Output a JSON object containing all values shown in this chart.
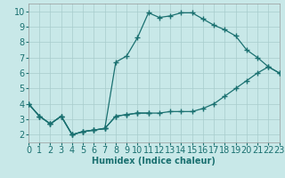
{
  "xlabel": "Humidex (Indice chaleur)",
  "bg_color": "#c8e8e8",
  "line_color": "#1a7070",
  "grid_color": "#a8cccc",
  "xlim": [
    0,
    23
  ],
  "ylim": [
    1.5,
    10.5
  ],
  "xticks": [
    0,
    1,
    2,
    3,
    4,
    5,
    6,
    7,
    8,
    9,
    10,
    11,
    12,
    13,
    14,
    15,
    16,
    17,
    18,
    19,
    20,
    21,
    22,
    23
  ],
  "yticks": [
    2,
    3,
    4,
    5,
    6,
    7,
    8,
    9,
    10
  ],
  "line1_x": [
    0,
    1,
    2,
    3,
    4,
    5,
    6,
    7,
    8,
    9,
    10,
    11
  ],
  "line1_y": [
    4.0,
    3.2,
    2.7,
    3.2,
    2.0,
    2.2,
    2.3,
    2.4,
    3.2,
    3.3,
    3.4,
    3.4
  ],
  "line2_x": [
    0,
    1,
    2,
    3,
    4,
    5,
    6,
    7,
    8,
    9,
    10,
    11,
    12,
    13,
    14,
    15,
    16,
    17,
    18,
    19,
    20,
    21,
    22,
    23
  ],
  "line2_y": [
    4.0,
    3.2,
    2.7,
    3.2,
    2.0,
    2.2,
    2.3,
    2.4,
    3.2,
    3.3,
    3.4,
    3.4,
    3.4,
    3.5,
    3.5,
    3.5,
    3.7,
    4.0,
    4.5,
    5.0,
    5.5,
    6.0,
    6.4,
    6.0
  ],
  "line3_x": [
    0,
    1,
    2,
    3,
    4,
    5,
    6,
    7,
    8,
    9,
    10,
    11,
    12,
    13,
    14,
    15,
    16,
    17,
    18,
    19,
    20,
    21,
    22,
    23
  ],
  "line3_y": [
    4.0,
    3.2,
    2.7,
    3.2,
    2.0,
    2.2,
    2.3,
    2.4,
    6.7,
    7.1,
    8.3,
    9.9,
    9.6,
    9.7,
    9.9,
    9.9,
    9.5,
    9.1,
    8.8,
    8.4,
    7.5,
    7.0,
    6.4,
    6.0
  ],
  "font_size": 7,
  "marker_size": 2.0,
  "line_width": 0.9
}
